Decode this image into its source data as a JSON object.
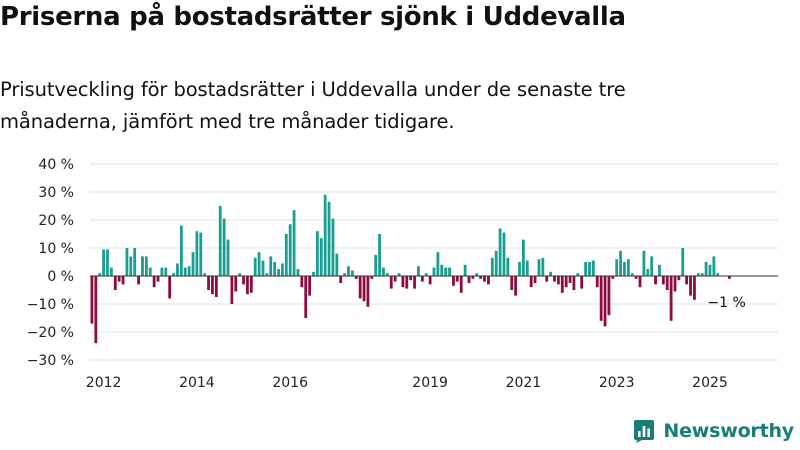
{
  "title": "Priserna på bostadsrätter sjönk i Uddevalla",
  "subtitle": "Prisutveckling för bostadsrätter i Uddevalla under de senaste tre månaderna, jämfört med tre månader tidigare.",
  "brand": {
    "name": "Newsworthy",
    "icon": "newsworthy-logo-icon"
  },
  "colors": {
    "positive": "#1a9e92",
    "negative": "#8e0b3f",
    "logo": "#1a7d78"
  },
  "chart_data": {
    "type": "bar",
    "title": "Priserna på bostadsrätter sjönk i Uddevalla",
    "subtitle": "Prisutveckling för bostadsrätter i Uddevalla under de senaste tre månaderna, jämfört med tre månader tidigare.",
    "x_start": "2011-10",
    "x_end": "2026-06",
    "x_ticks": [
      {
        "label": "2012",
        "date": "2012-01"
      },
      {
        "label": "2014",
        "date": "2014-01"
      },
      {
        "label": "2016",
        "date": "2016-01"
      },
      {
        "label": "2019",
        "date": "2019-01"
      },
      {
        "label": "2021",
        "date": "2021-01"
      },
      {
        "label": "2023",
        "date": "2023-01"
      },
      {
        "label": "2025",
        "date": "2025-01"
      }
    ],
    "y_ticks": [
      {
        "label": "40 %",
        "value": 40
      },
      {
        "label": "30 %",
        "value": 30
      },
      {
        "label": "20 %",
        "value": 20
      },
      {
        "label": "10 %",
        "value": 10
      },
      {
        "label": "0 %",
        "value": 0
      },
      {
        "label": "−10 %",
        "value": -10
      },
      {
        "label": "−20 %",
        "value": -20
      },
      {
        "label": "−30 %",
        "value": -30
      }
    ],
    "ylim": [
      -30,
      40
    ],
    "grid": true,
    "annotation": {
      "text": "−1 %",
      "date": "2025-06",
      "value": -1
    },
    "series": [
      {
        "points": [
          [
            "2011-10",
            -17
          ],
          [
            "2011-11",
            -24
          ],
          [
            "2011-12",
            1
          ],
          [
            "2012-01",
            9.5
          ],
          [
            "2012-02",
            9.5
          ],
          [
            "2012-03",
            3
          ],
          [
            "2012-04",
            -5
          ],
          [
            "2012-05",
            -2
          ],
          [
            "2012-06",
            -3
          ],
          [
            "2012-07",
            10
          ],
          [
            "2012-08",
            7
          ],
          [
            "2012-09",
            10
          ],
          [
            "2012-10",
            -3
          ],
          [
            "2012-11",
            7
          ],
          [
            "2012-12",
            7
          ],
          [
            "2013-01",
            3
          ],
          [
            "2013-02",
            -4
          ],
          [
            "2013-03",
            -2
          ],
          [
            "2013-04",
            3
          ],
          [
            "2013-05",
            3
          ],
          [
            "2013-06",
            -8
          ],
          [
            "2013-07",
            1
          ],
          [
            "2013-08",
            4.5
          ],
          [
            "2013-09",
            18
          ],
          [
            "2013-10",
            3
          ],
          [
            "2013-11",
            3.5
          ],
          [
            "2013-12",
            8.5
          ],
          [
            "2014-01",
            16
          ],
          [
            "2014-02",
            15.5
          ],
          [
            "2014-03",
            1
          ],
          [
            "2014-04",
            -5
          ],
          [
            "2014-05",
            -6.5
          ],
          [
            "2014-06",
            -7.5
          ],
          [
            "2014-07",
            25
          ],
          [
            "2014-08",
            20.5
          ],
          [
            "2014-09",
            13
          ],
          [
            "2014-10",
            -10
          ],
          [
            "2014-11",
            -5.5
          ],
          [
            "2014-12",
            1
          ],
          [
            "2015-01",
            -3
          ],
          [
            "2015-02",
            -6.5
          ],
          [
            "2015-03",
            -6
          ],
          [
            "2015-04",
            6.5
          ],
          [
            "2015-05",
            8.5
          ],
          [
            "2015-06",
            5.5
          ],
          [
            "2015-07",
            1
          ],
          [
            "2015-08",
            7
          ],
          [
            "2015-09",
            5
          ],
          [
            "2015-10",
            2.5
          ],
          [
            "2015-11",
            4.5
          ],
          [
            "2015-12",
            15
          ],
          [
            "2016-01",
            18.5
          ],
          [
            "2016-02",
            23.5
          ],
          [
            "2016-03",
            2.5
          ],
          [
            "2016-04",
            -4
          ],
          [
            "2016-05",
            -15
          ],
          [
            "2016-06",
            -7
          ],
          [
            "2016-07",
            1.5
          ],
          [
            "2016-08",
            16
          ],
          [
            "2016-09",
            13.5
          ],
          [
            "2016-10",
            29
          ],
          [
            "2016-11",
            26.5
          ],
          [
            "2016-12",
            20.5
          ],
          [
            "2017-01",
            8
          ],
          [
            "2017-02",
            -2.5
          ],
          [
            "2017-03",
            1
          ],
          [
            "2017-04",
            3.5
          ],
          [
            "2017-05",
            2
          ],
          [
            "2017-06",
            -1
          ],
          [
            "2017-07",
            -8
          ],
          [
            "2017-08",
            -9
          ],
          [
            "2017-09",
            -11
          ],
          [
            "2017-10",
            -1
          ],
          [
            "2017-11",
            7.5
          ],
          [
            "2017-12",
            15
          ],
          [
            "2018-01",
            3
          ],
          [
            "2018-02",
            1
          ],
          [
            "2018-03",
            -4.5
          ],
          [
            "2018-04",
            -2
          ],
          [
            "2018-05",
            1
          ],
          [
            "2018-06",
            -4
          ],
          [
            "2018-07",
            -4.5
          ],
          [
            "2018-08",
            -1.5
          ],
          [
            "2018-09",
            -4.5
          ],
          [
            "2018-10",
            3.5
          ],
          [
            "2018-11",
            -2
          ],
          [
            "2018-12",
            1
          ],
          [
            "2019-01",
            -3
          ],
          [
            "2019-02",
            3
          ],
          [
            "2019-03",
            8.5
          ],
          [
            "2019-04",
            4
          ],
          [
            "2019-05",
            3
          ],
          [
            "2019-06",
            3
          ],
          [
            "2019-07",
            -3.5
          ],
          [
            "2019-08",
            -2
          ],
          [
            "2019-09",
            -6
          ],
          [
            "2019-10",
            4
          ],
          [
            "2019-11",
            -2.5
          ],
          [
            "2019-12",
            -1
          ],
          [
            "2020-01",
            1
          ],
          [
            "2020-02",
            -1
          ],
          [
            "2020-03",
            -2
          ],
          [
            "2020-04",
            -3
          ],
          [
            "2020-05",
            6.5
          ],
          [
            "2020-06",
            9
          ],
          [
            "2020-07",
            17
          ],
          [
            "2020-08",
            15.5
          ],
          [
            "2020-09",
            6.5
          ],
          [
            "2020-10",
            -5
          ],
          [
            "2020-11",
            -7
          ],
          [
            "2020-12",
            5
          ],
          [
            "2021-01",
            13
          ],
          [
            "2021-02",
            5.5
          ],
          [
            "2021-03",
            -4
          ],
          [
            "2021-04",
            -2.5
          ],
          [
            "2021-05",
            6
          ],
          [
            "2021-06",
            6.5
          ],
          [
            "2021-07",
            -2
          ],
          [
            "2021-08",
            1.5
          ],
          [
            "2021-09",
            -2
          ],
          [
            "2021-10",
            -3
          ],
          [
            "2021-11",
            -6
          ],
          [
            "2021-12",
            -4
          ],
          [
            "2022-01",
            -2.5
          ],
          [
            "2022-02",
            -5
          ],
          [
            "2022-03",
            1
          ],
          [
            "2022-04",
            -4.5
          ],
          [
            "2022-05",
            5
          ],
          [
            "2022-06",
            5
          ],
          [
            "2022-07",
            5.5
          ],
          [
            "2022-08",
            -4
          ],
          [
            "2022-09",
            -16
          ],
          [
            "2022-10",
            -18
          ],
          [
            "2022-11",
            -14
          ],
          [
            "2022-12",
            -1
          ],
          [
            "2023-01",
            6
          ],
          [
            "2023-02",
            9
          ],
          [
            "2023-03",
            5
          ],
          [
            "2023-04",
            6
          ],
          [
            "2023-05",
            1
          ],
          [
            "2023-06",
            -1
          ],
          [
            "2023-07",
            -4
          ],
          [
            "2023-08",
            9
          ],
          [
            "2023-09",
            2.5
          ],
          [
            "2023-10",
            7
          ],
          [
            "2023-11",
            -3
          ],
          [
            "2023-12",
            4
          ],
          [
            "2024-01",
            -3
          ],
          [
            "2024-02",
            -5
          ],
          [
            "2024-03",
            -16
          ],
          [
            "2024-04",
            -5.5
          ],
          [
            "2024-05",
            -1.5
          ],
          [
            "2024-06",
            10
          ],
          [
            "2024-07",
            -3
          ],
          [
            "2024-08",
            -7
          ],
          [
            "2024-09",
            -8.5
          ],
          [
            "2024-10",
            1
          ],
          [
            "2024-11",
            1
          ],
          [
            "2024-12",
            5
          ],
          [
            "2025-01",
            4
          ],
          [
            "2025-02",
            7
          ],
          [
            "2025-03",
            1
          ],
          [
            "2025-06",
            -1
          ]
        ]
      }
    ]
  }
}
